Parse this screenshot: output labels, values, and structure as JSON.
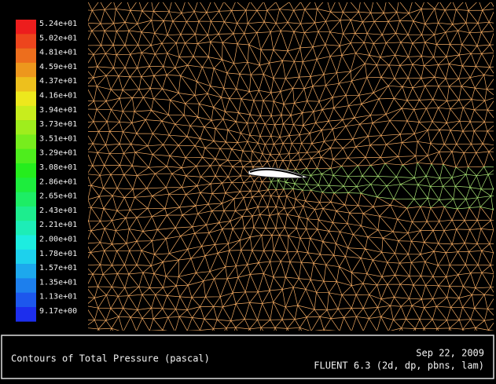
{
  "colorbar": {
    "labels": [
      "5.24e+01",
      "5.02e+01",
      "4.81e+01",
      "4.59e+01",
      "4.37e+01",
      "4.16e+01",
      "3.94e+01",
      "3.73e+01",
      "3.51e+01",
      "3.29e+01",
      "3.08e+01",
      "2.86e+01",
      "2.65e+01",
      "2.43e+01",
      "2.21e+01",
      "2.00e+01",
      "1.78e+01",
      "1.57e+01",
      "1.35e+01",
      "1.13e+01",
      "9.17e+00"
    ]
  },
  "footer": {
    "title": "Contours of Total Pressure (pascal)",
    "date": "Sep 22, 2009",
    "version": "FLUENT 6.3 (2d, dp, pbns, lam)"
  }
}
